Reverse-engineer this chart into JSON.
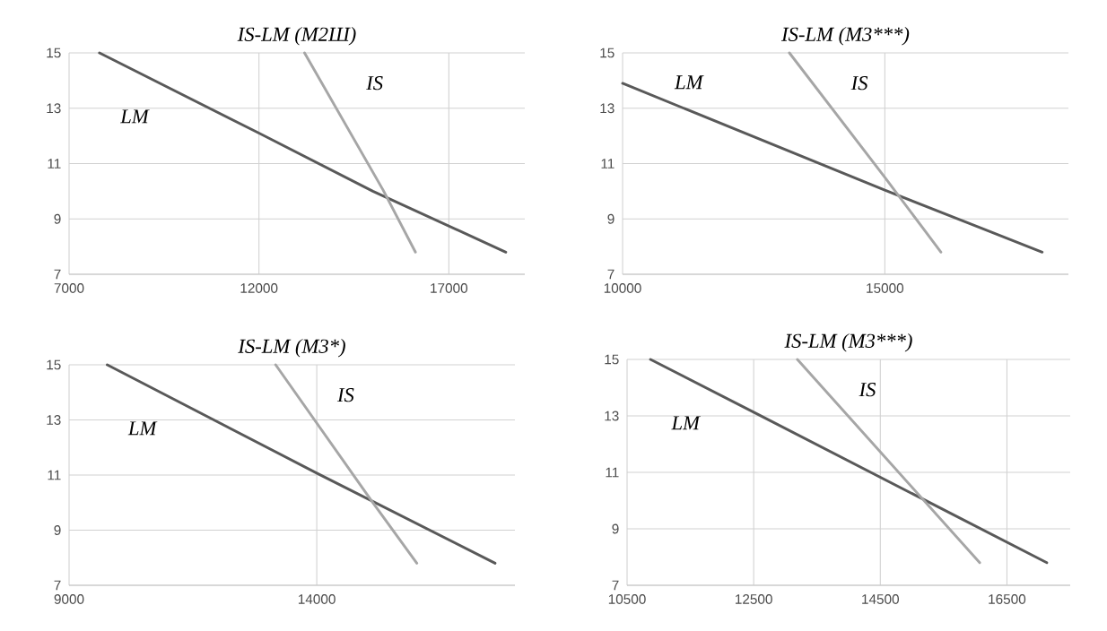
{
  "chart_data": [
    {
      "type": "line",
      "title": "IS-LM (M2Ш)",
      "xlim": [
        7000,
        19000
      ],
      "xticks": [
        7000,
        12000,
        17000
      ],
      "ylim": [
        7,
        15
      ],
      "yticks": [
        7,
        9,
        11,
        13,
        15
      ],
      "grid": true,
      "series": [
        {
          "name": "LM",
          "color": "#595959",
          "x": [
            7800,
            12000,
            15000,
            18500
          ],
          "values": [
            15,
            12.1,
            10,
            7.8
          ]
        },
        {
          "name": "IS",
          "color": "#a6a6a6",
          "x": [
            13200,
            15270,
            16120
          ],
          "values": [
            15,
            10.04,
            7.8
          ]
        }
      ]
    },
    {
      "type": "line",
      "title": "IS-LM (M3***)",
      "xlim": [
        10000,
        18500
      ],
      "xticks": [
        10000,
        15000
      ],
      "ylim": [
        7,
        15
      ],
      "yticks": [
        7,
        9,
        11,
        13,
        15
      ],
      "grid": true,
      "series": [
        {
          "name": "LM",
          "color": "#595959",
          "x": [
            10000,
            15000,
            18000
          ],
          "values": [
            13.9,
            10.04,
            7.8
          ]
        },
        {
          "name": "IS",
          "color": "#a6a6a6",
          "x": [
            13180,
            15000,
            16070
          ],
          "values": [
            15,
            10.5,
            7.8
          ]
        }
      ]
    },
    {
      "type": "line",
      "title": "IS-LM (M3*)",
      "xlim": [
        9000,
        18000
      ],
      "xticks": [
        9000,
        14000
      ],
      "ylim": [
        7,
        15
      ],
      "yticks": [
        7,
        9,
        11,
        13,
        15
      ],
      "grid": true,
      "series": [
        {
          "name": "LM",
          "color": "#595959",
          "x": [
            9770,
            14000,
            17600
          ],
          "values": [
            15,
            11.07,
            7.8
          ]
        },
        {
          "name": "IS",
          "color": "#a6a6a6",
          "x": [
            13170,
            15120,
            16020
          ],
          "values": [
            15,
            10.03,
            7.8
          ]
        }
      ]
    },
    {
      "type": "line",
      "title": "IS-LM (M3***)",
      "xlim": [
        10500,
        17500
      ],
      "xticks": [
        10500,
        12500,
        14500,
        16500
      ],
      "ylim": [
        7,
        15
      ],
      "yticks": [
        7,
        9,
        11,
        13,
        15
      ],
      "grid": true,
      "series": [
        {
          "name": "LM",
          "color": "#595959",
          "x": [
            10870,
            12500,
            17130
          ],
          "values": [
            15,
            13.13,
            7.8
          ]
        },
        {
          "name": "IS",
          "color": "#a6a6a6",
          "x": [
            13190,
            16070
          ],
          "values": [
            15,
            7.8
          ]
        }
      ]
    }
  ]
}
